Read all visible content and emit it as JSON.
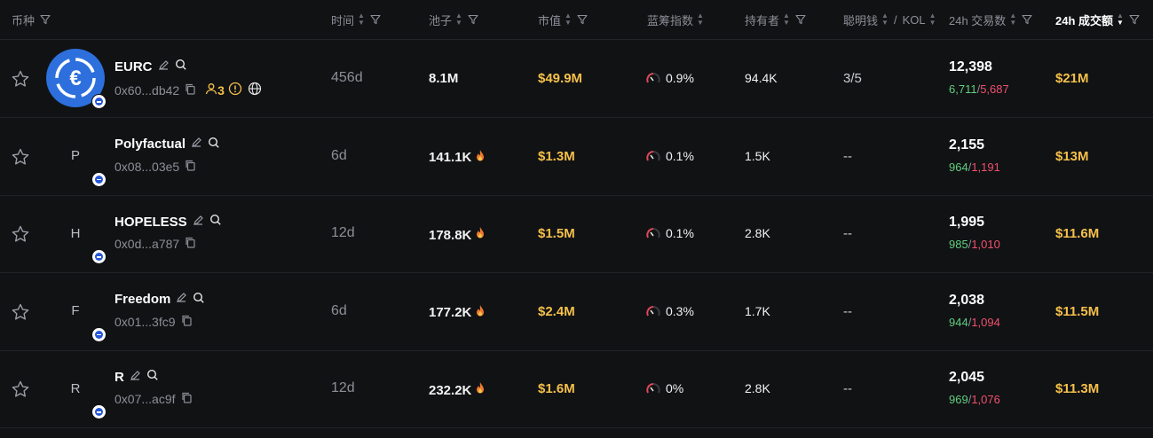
{
  "header": {
    "token": "币种",
    "age": "时间",
    "pool": "池子",
    "mcap": "市值",
    "bluechip": "蓝筹指数",
    "holders": "持有者",
    "smart": "聪明钱",
    "smart_sep": "/",
    "kol": "KOL",
    "tx24": "24h 交易数",
    "vol24": "24h 成交额"
  },
  "colors": {
    "accent_gold": "#f5c04a",
    "buy_green": "#5fcf7f",
    "sell_red": "#f0506e",
    "usdc_blue": "#2d6fdc"
  },
  "rows": [
    {
      "name": "EURC",
      "logo": "€",
      "addr": "0x60...db42",
      "extras": {
        "people_count": "3"
      },
      "age": "456d",
      "pool": "8.1M",
      "hot": false,
      "mcap": "$49.9M",
      "bluechip": "0.9%",
      "holders": "94.4K",
      "smart": "3/5",
      "tx": "12,398",
      "buys": "6,711",
      "sells": "5,687",
      "vol": "$21M"
    },
    {
      "name": "Polyfactual",
      "logo": "P",
      "addr": "0x08...03e5",
      "age": "6d",
      "pool": "141.1K",
      "hot": true,
      "mcap": "$1.3M",
      "bluechip": "0.1%",
      "holders": "1.5K",
      "smart": "--",
      "tx": "2,155",
      "buys": "964",
      "sells": "1,191",
      "vol": "$13M"
    },
    {
      "name": "HOPELESS",
      "logo": "H",
      "addr": "0x0d...a787",
      "age": "12d",
      "pool": "178.8K",
      "hot": true,
      "mcap": "$1.5M",
      "bluechip": "0.1%",
      "holders": "2.8K",
      "smart": "--",
      "tx": "1,995",
      "buys": "985",
      "sells": "1,010",
      "vol": "$11.6M"
    },
    {
      "name": "Freedom",
      "logo": "F",
      "addr": "0x01...3fc9",
      "age": "6d",
      "pool": "177.2K",
      "hot": true,
      "mcap": "$2.4M",
      "bluechip": "0.3%",
      "holders": "1.7K",
      "smart": "--",
      "tx": "2,038",
      "buys": "944",
      "sells": "1,094",
      "vol": "$11.5M"
    },
    {
      "name": "R",
      "logo": "R",
      "addr": "0x07...ac9f",
      "age": "12d",
      "pool": "232.2K",
      "hot": true,
      "mcap": "$1.6M",
      "bluechip": "0%",
      "holders": "2.8K",
      "smart": "--",
      "tx": "2,045",
      "buys": "969",
      "sells": "1,076",
      "vol": "$11.3M"
    }
  ]
}
